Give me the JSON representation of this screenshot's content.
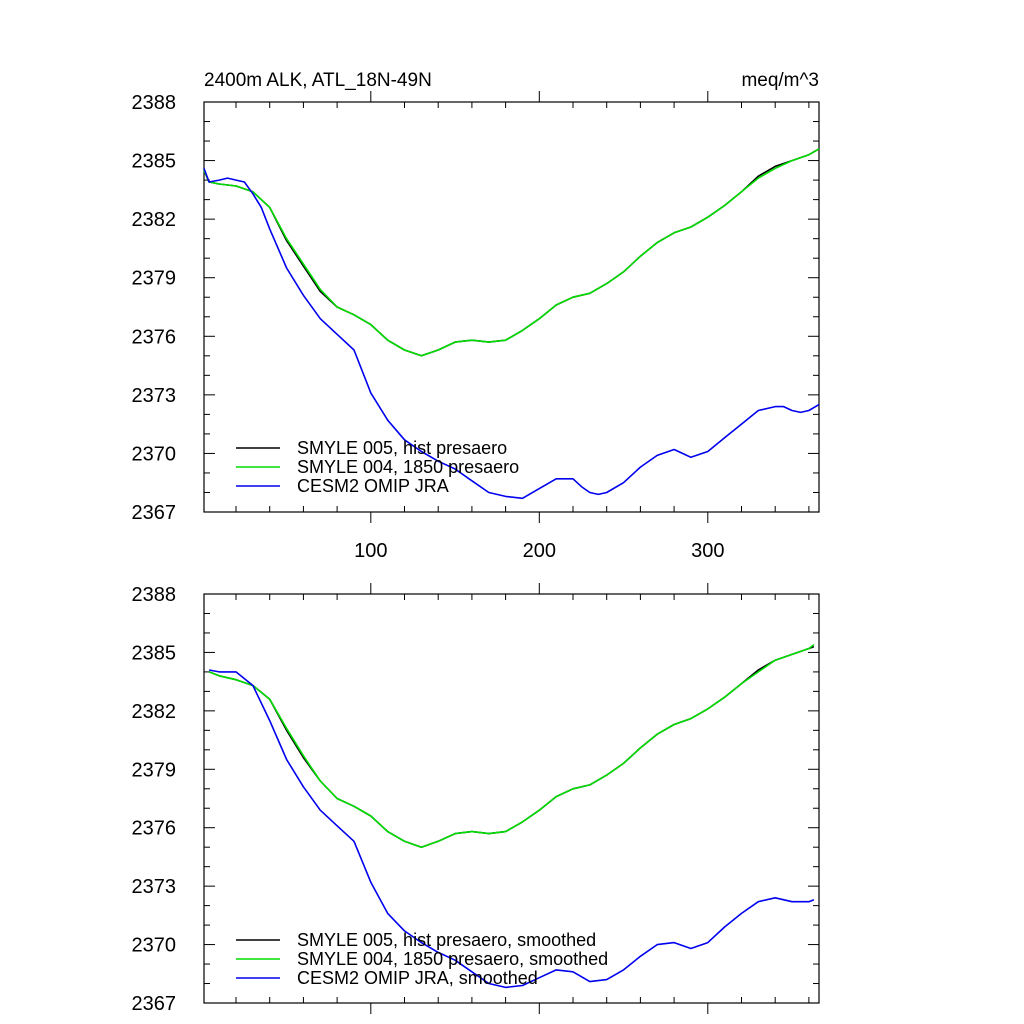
{
  "chart_data": [
    {
      "type": "line",
      "title": "2400m ALK, ATL_18N-49N",
      "units": "meq/m^3",
      "xlabel": "",
      "ylabel": "",
      "xlim": [
        1,
        366
      ],
      "ylim": [
        2367,
        2388
      ],
      "xticks": [
        100,
        200,
        300
      ],
      "xtick_labels": [
        "100",
        "200",
        "300"
      ],
      "yticks": [
        2367,
        2370,
        2373,
        2376,
        2379,
        2382,
        2385,
        2388
      ],
      "ytick_labels": [
        "2367",
        "2370",
        "2373",
        "2376",
        "2379",
        "2382",
        "2385",
        "2388"
      ],
      "grid": false,
      "legend_position": "bottom-left",
      "series": [
        {
          "name": "SMYLE 005, hist presaero",
          "color": "#000000",
          "x": [
            1,
            4,
            10,
            20,
            30,
            40,
            50,
            60,
            70,
            80,
            90,
            100,
            110,
            120,
            130,
            140,
            150,
            160,
            170,
            180,
            190,
            200,
            210,
            220,
            230,
            240,
            250,
            260,
            270,
            280,
            290,
            300,
            310,
            320,
            330,
            340,
            350,
            360,
            366
          ],
          "y": [
            2384.5,
            2383.9,
            2383.8,
            2383.7,
            2383.4,
            2382.6,
            2380.9,
            2379.6,
            2378.3,
            2377.5,
            2377.1,
            2376.6,
            2375.8,
            2375.3,
            2375.0,
            2375.3,
            2375.7,
            2375.8,
            2375.7,
            2375.8,
            2376.3,
            2376.9,
            2377.6,
            2378.0,
            2378.2,
            2378.7,
            2379.3,
            2380.1,
            2380.8,
            2381.3,
            2381.6,
            2382.1,
            2382.7,
            2383.4,
            2384.2,
            2384.7,
            2385.0,
            2385.3,
            2385.6
          ]
        },
        {
          "name": "SMYLE 004, 1850 presaero",
          "color": "#00dd00",
          "x": [
            1,
            4,
            10,
            20,
            30,
            40,
            50,
            60,
            70,
            80,
            90,
            100,
            110,
            120,
            130,
            140,
            150,
            160,
            170,
            180,
            190,
            200,
            210,
            220,
            230,
            240,
            250,
            260,
            270,
            280,
            290,
            300,
            310,
            320,
            330,
            340,
            350,
            360,
            366
          ],
          "y": [
            2384.5,
            2383.9,
            2383.8,
            2383.7,
            2383.4,
            2382.6,
            2381.0,
            2379.7,
            2378.4,
            2377.5,
            2377.1,
            2376.6,
            2375.8,
            2375.3,
            2375.0,
            2375.3,
            2375.7,
            2375.8,
            2375.7,
            2375.8,
            2376.3,
            2376.9,
            2377.6,
            2378.0,
            2378.2,
            2378.7,
            2379.3,
            2380.1,
            2380.8,
            2381.3,
            2381.6,
            2382.1,
            2382.7,
            2383.4,
            2384.1,
            2384.6,
            2385.0,
            2385.3,
            2385.6
          ]
        },
        {
          "name": "CESM2 OMIP JRA",
          "color": "#0000ee",
          "x": [
            1,
            4,
            10,
            15,
            20,
            25,
            30,
            35,
            40,
            50,
            60,
            70,
            80,
            90,
            95,
            100,
            110,
            120,
            130,
            140,
            150,
            160,
            170,
            180,
            190,
            200,
            210,
            220,
            225,
            230,
            235,
            240,
            250,
            260,
            270,
            280,
            285,
            290,
            300,
            310,
            320,
            330,
            340,
            345,
            350,
            355,
            360,
            366
          ],
          "y": [
            2384.6,
            2383.9,
            2384.0,
            2384.1,
            2384.0,
            2383.9,
            2383.3,
            2382.6,
            2381.5,
            2379.5,
            2378.1,
            2376.9,
            2376.1,
            2375.3,
            2374.2,
            2373.1,
            2371.7,
            2370.7,
            2370.1,
            2369.6,
            2369.2,
            2368.6,
            2368.0,
            2367.8,
            2367.7,
            2368.2,
            2368.7,
            2368.7,
            2368.3,
            2368.0,
            2367.9,
            2368.0,
            2368.5,
            2369.3,
            2369.9,
            2370.2,
            2370.0,
            2369.8,
            2370.1,
            2370.8,
            2371.5,
            2372.2,
            2372.4,
            2372.4,
            2372.2,
            2372.1,
            2372.2,
            2372.5
          ]
        }
      ]
    },
    {
      "type": "line",
      "title": "",
      "units": "",
      "xlabel": "",
      "ylabel": "",
      "xlim": [
        1,
        366
      ],
      "ylim": [
        2367,
        2388
      ],
      "xticks": [
        100,
        200,
        300
      ],
      "xtick_labels": [],
      "yticks": [
        2367,
        2370,
        2373,
        2376,
        2379,
        2382,
        2385,
        2388
      ],
      "ytick_labels": [
        "2367",
        "2370",
        "2373",
        "2376",
        "2379",
        "2382",
        "2385",
        "2388"
      ],
      "grid": false,
      "legend_position": "bottom-left",
      "series": [
        {
          "name": "SMYLE 005, hist presaero, smoothed",
          "color": "#000000",
          "x": [
            4,
            10,
            20,
            30,
            40,
            50,
            60,
            70,
            80,
            90,
            100,
            110,
            120,
            130,
            140,
            150,
            160,
            170,
            180,
            190,
            200,
            210,
            220,
            230,
            240,
            250,
            260,
            270,
            280,
            290,
            300,
            310,
            320,
            330,
            340,
            350,
            360,
            363
          ],
          "y": [
            2384.0,
            2383.8,
            2383.6,
            2383.3,
            2382.6,
            2381.0,
            2379.6,
            2378.4,
            2377.5,
            2377.1,
            2376.6,
            2375.8,
            2375.3,
            2375.0,
            2375.3,
            2375.7,
            2375.8,
            2375.7,
            2375.8,
            2376.3,
            2376.9,
            2377.6,
            2378.0,
            2378.2,
            2378.7,
            2379.3,
            2380.1,
            2380.8,
            2381.3,
            2381.6,
            2382.1,
            2382.7,
            2383.4,
            2384.1,
            2384.6,
            2384.9,
            2385.2,
            2385.3
          ]
        },
        {
          "name": "SMYLE 004, 1850 presaero, smoothed",
          "color": "#00dd00",
          "x": [
            4,
            10,
            20,
            30,
            40,
            50,
            60,
            70,
            80,
            90,
            100,
            110,
            120,
            130,
            140,
            150,
            160,
            170,
            180,
            190,
            200,
            210,
            220,
            230,
            240,
            250,
            260,
            270,
            280,
            290,
            300,
            310,
            320,
            330,
            340,
            350,
            360,
            363
          ],
          "y": [
            2384.0,
            2383.8,
            2383.6,
            2383.3,
            2382.6,
            2381.1,
            2379.7,
            2378.4,
            2377.5,
            2377.1,
            2376.6,
            2375.8,
            2375.3,
            2375.0,
            2375.3,
            2375.7,
            2375.8,
            2375.7,
            2375.8,
            2376.3,
            2376.9,
            2377.6,
            2378.0,
            2378.2,
            2378.7,
            2379.3,
            2380.1,
            2380.8,
            2381.3,
            2381.6,
            2382.1,
            2382.7,
            2383.4,
            2384.0,
            2384.6,
            2384.9,
            2385.2,
            2385.4
          ]
        },
        {
          "name": "CESM2 OMIP JRA, smoothed",
          "color": "#0000ee",
          "x": [
            4,
            10,
            20,
            30,
            40,
            50,
            60,
            70,
            80,
            90,
            100,
            110,
            120,
            130,
            140,
            150,
            160,
            170,
            180,
            190,
            200,
            210,
            220,
            230,
            240,
            250,
            260,
            270,
            280,
            290,
            300,
            310,
            320,
            330,
            340,
            350,
            360,
            363
          ],
          "y": [
            2384.1,
            2384.0,
            2384.0,
            2383.3,
            2381.5,
            2379.5,
            2378.1,
            2376.9,
            2376.1,
            2375.3,
            2373.2,
            2371.6,
            2370.7,
            2370.1,
            2369.6,
            2369.2,
            2368.6,
            2368.0,
            2367.8,
            2367.9,
            2368.3,
            2368.7,
            2368.6,
            2368.1,
            2368.2,
            2368.7,
            2369.4,
            2370.0,
            2370.1,
            2369.8,
            2370.1,
            2370.9,
            2371.6,
            2372.2,
            2372.4,
            2372.2,
            2372.2,
            2372.3
          ]
        }
      ]
    }
  ]
}
